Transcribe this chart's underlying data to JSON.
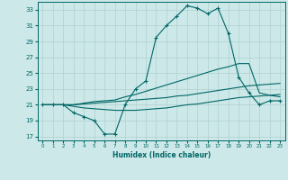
{
  "xlabel": "Humidex (Indice chaleur)",
  "xlim": [
    -0.5,
    23.5
  ],
  "ylim": [
    16.5,
    34
  ],
  "yticks": [
    17,
    19,
    21,
    23,
    25,
    27,
    29,
    31,
    33
  ],
  "xticks": [
    0,
    1,
    2,
    3,
    4,
    5,
    6,
    7,
    8,
    9,
    10,
    11,
    12,
    13,
    14,
    15,
    16,
    17,
    18,
    19,
    20,
    21,
    22,
    23
  ],
  "bg_color": "#cce8e8",
  "grid_color": "#b0d0d0",
  "line_color": "#006666",
  "lines": [
    {
      "x": [
        0,
        1,
        2,
        3,
        4,
        5,
        6,
        7,
        8,
        9,
        10,
        11,
        12,
        13,
        14,
        15,
        16,
        17,
        18,
        19,
        20,
        21,
        22,
        23
      ],
      "y": [
        21,
        21,
        21,
        20,
        19.5,
        19,
        17.3,
        17.3,
        21,
        23,
        24,
        29.5,
        31,
        32.2,
        33.5,
        33.2,
        32.5,
        33.2,
        30,
        24.5,
        22.5,
        21,
        21.5,
        21.5
      ],
      "marker": "+"
    },
    {
      "x": [
        0,
        1,
        2,
        3,
        4,
        5,
        6,
        7,
        8,
        9,
        10,
        11,
        12,
        13,
        14,
        15,
        16,
        17,
        18,
        19,
        20,
        21,
        22,
        23
      ],
      "y": [
        21,
        21,
        21,
        21,
        21.2,
        21.4,
        21.5,
        21.6,
        22.0,
        22.3,
        22.7,
        23.1,
        23.5,
        23.9,
        24.3,
        24.7,
        25.1,
        25.5,
        25.8,
        26.2,
        26.2,
        22.5,
        22.2,
        22.0
      ],
      "marker": null
    },
    {
      "x": [
        0,
        1,
        2,
        3,
        4,
        5,
        6,
        7,
        8,
        9,
        10,
        11,
        12,
        13,
        14,
        15,
        16,
        17,
        18,
        19,
        20,
        21,
        22,
        23
      ],
      "y": [
        21,
        21,
        21,
        21,
        21.1,
        21.2,
        21.3,
        21.4,
        21.5,
        21.6,
        21.7,
        21.8,
        21.9,
        22.1,
        22.2,
        22.4,
        22.6,
        22.8,
        23.0,
        23.2,
        23.4,
        23.5,
        23.6,
        23.7
      ],
      "marker": null
    },
    {
      "x": [
        0,
        1,
        2,
        3,
        4,
        5,
        6,
        7,
        8,
        9,
        10,
        11,
        12,
        13,
        14,
        15,
        16,
        17,
        18,
        19,
        20,
        21,
        22,
        23
      ],
      "y": [
        21,
        21,
        21,
        20.8,
        20.6,
        20.5,
        20.4,
        20.3,
        20.3,
        20.3,
        20.4,
        20.5,
        20.6,
        20.8,
        21.0,
        21.1,
        21.3,
        21.5,
        21.7,
        21.9,
        22.0,
        22.1,
        22.2,
        22.3
      ],
      "marker": null
    }
  ]
}
